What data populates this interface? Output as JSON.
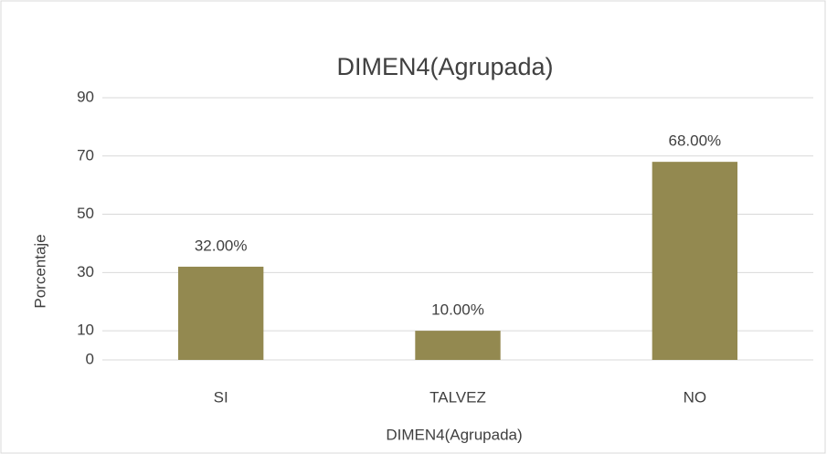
{
  "chart_data": {
    "type": "bar",
    "title": "DIMEN4(Agrupada)",
    "x_label": "DIMEN4(Agrupada)",
    "y_label": "Porcentaje",
    "categories": [
      "SI",
      "TALVEZ",
      "NO"
    ],
    "values": [
      32,
      10,
      68
    ],
    "value_labels": [
      "32.00%",
      "10.00%",
      "68.00%"
    ],
    "color": "#938950",
    "ylim": [
      0,
      90
    ],
    "yticks": [
      0,
      10,
      30,
      50,
      70,
      90
    ],
    "grid": true
  }
}
